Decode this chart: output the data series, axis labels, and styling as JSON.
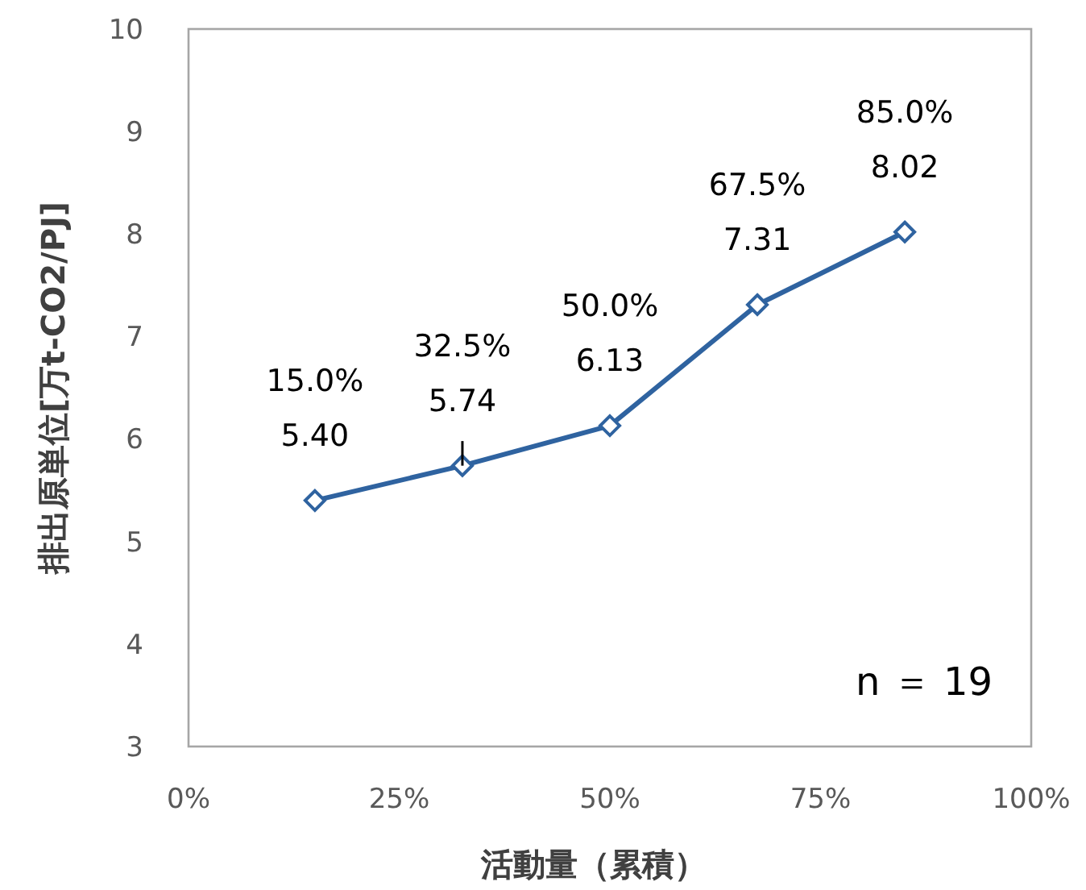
{
  "chart_data": {
    "type": "line",
    "xlabel": "活動量（累積）",
    "ylabel": "排出原単位[万t-CO2/PJ]",
    "xlim": [
      0,
      100
    ],
    "xticks": [
      {
        "value": 0,
        "label": "0%"
      },
      {
        "value": 25,
        "label": "25%"
      },
      {
        "value": 50,
        "label": "50%"
      },
      {
        "value": 75,
        "label": "75%"
      },
      {
        "value": 100,
        "label": "100%"
      }
    ],
    "ylim": [
      3,
      10
    ],
    "yticks": [
      3,
      4,
      5,
      6,
      7,
      8,
      9,
      10
    ],
    "grid": false,
    "marker": "diamond",
    "line_style": "solid",
    "series": [
      {
        "color": "#2f63a0",
        "x": [
          15,
          32.5,
          50,
          67.5,
          85
        ],
        "values": [
          5.4,
          5.74,
          6.13,
          7.31,
          8.02
        ],
        "value_labels": [
          "15.0%\n5.40",
          "32.5%\n5.74",
          "50.0%\n6.13",
          "67.5%\n7.31",
          "85.0%\n8.02"
        ],
        "errors": [
          null,
          [
            5.74,
            5.98
          ],
          null,
          null,
          null
        ]
      }
    ],
    "annotations": [
      "n ＝ 19"
    ]
  }
}
